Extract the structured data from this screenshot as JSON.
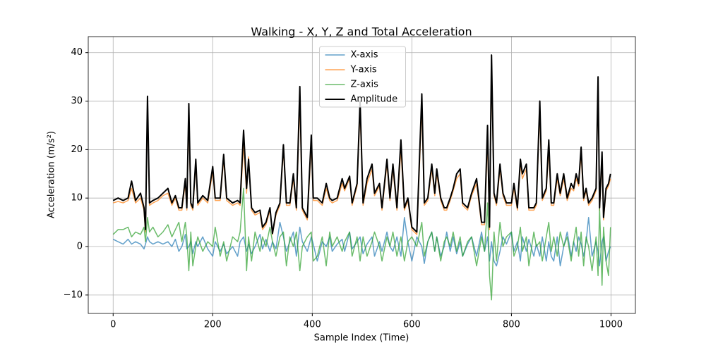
{
  "chart_data": {
    "type": "line",
    "title": "Walking - X, Y, Z and Total Acceleration",
    "x_label": "Sample Index (Time)",
    "y_label": "Acceleration (m/s²)",
    "x": [
      0,
      10,
      20,
      30,
      37,
      45,
      55,
      62,
      65,
      69,
      73,
      80,
      90,
      100,
      110,
      118,
      125,
      132,
      138,
      145,
      148,
      152,
      156,
      160,
      166,
      170,
      180,
      190,
      200,
      205,
      215,
      222,
      228,
      240,
      250,
      255,
      262,
      268,
      272,
      278,
      285,
      295,
      300,
      307,
      315,
      320,
      327,
      335,
      342,
      348,
      355,
      362,
      368,
      375,
      380,
      390,
      398,
      402,
      410,
      420,
      428,
      435,
      440,
      450,
      460,
      465,
      475,
      480,
      490,
      496,
      502,
      510,
      520,
      525,
      535,
      540,
      550,
      556,
      562,
      570,
      578,
      585,
      592,
      600,
      610,
      620,
      625,
      632,
      640,
      646,
      650,
      658,
      665,
      670,
      677,
      683,
      690,
      697,
      702,
      712,
      720,
      730,
      740,
      746,
      752,
      756,
      760,
      765,
      770,
      777,
      783,
      790,
      800,
      805,
      812,
      818,
      822,
      830,
      835,
      845,
      850,
      857,
      862,
      870,
      875,
      880,
      885,
      892,
      898,
      905,
      912,
      920,
      925,
      930,
      935,
      940,
      945,
      950,
      955,
      962,
      970,
      974,
      977,
      982,
      985,
      990,
      995,
      999
    ],
    "series": [
      {
        "name": "X-axis",
        "color": "#1f77b4b3",
        "linewidth": 1.5,
        "values": [
          1.5,
          1,
          0.5,
          1.5,
          0.5,
          1,
          0.5,
          -0.5,
          0.5,
          2,
          1,
          0.5,
          1,
          0.5,
          1,
          0,
          1.5,
          -1,
          0,
          2.5,
          -0.5,
          0,
          1,
          -1.5,
          1,
          0,
          2,
          -0.5,
          -2,
          1,
          -1,
          0.5,
          -1.5,
          0,
          -2,
          1,
          2,
          -1,
          0.5,
          -1.5,
          0,
          2.5,
          -0.5,
          1.5,
          -1,
          1,
          -0.5,
          5,
          2,
          -1,
          1,
          3,
          -2,
          4,
          1,
          -1,
          2,
          0.5,
          -3,
          1,
          0,
          2,
          -1,
          0.5,
          1.5,
          -1,
          3,
          -0.5,
          1,
          2,
          -1.5,
          0.5,
          2,
          -2,
          1,
          -1,
          3,
          0,
          -1,
          2,
          -2,
          6,
          1,
          -3,
          2,
          0,
          -3.5,
          1,
          3,
          -1,
          2,
          -2,
          0,
          3,
          -1,
          2,
          -1.5,
          1,
          -2,
          0.5,
          2,
          -2,
          3,
          -1,
          2,
          -3,
          1,
          -3,
          -4,
          -1,
          2,
          0.5,
          3,
          -1,
          1,
          -3,
          2,
          -1,
          1.5,
          -2,
          0.5,
          -2,
          2,
          -3,
          1,
          -2,
          -3,
          2,
          -4,
          0,
          3,
          -2,
          1,
          -1,
          2,
          0.5,
          -2,
          1,
          6,
          -2,
          1,
          -1,
          -4,
          1,
          2,
          -3,
          -1,
          0
        ]
      },
      {
        "name": "Y-axis",
        "color": "#ff7f0eb3",
        "linewidth": 1.5,
        "values": [
          9,
          9.3,
          9,
          9.5,
          12,
          9,
          10,
          7.5,
          3,
          30,
          8.5,
          9,
          9.5,
          10.5,
          11,
          8.5,
          10,
          7.5,
          7.5,
          13,
          7.5,
          27,
          8.5,
          7.5,
          17,
          8.5,
          10,
          9,
          15.5,
          9.5,
          9.5,
          18,
          9.5,
          8.5,
          9,
          8.5,
          21,
          11,
          18.5,
          7.5,
          6.5,
          7,
          3.5,
          4.5,
          7.5,
          2.5,
          6.5,
          8.5,
          20,
          8.5,
          8.5,
          14,
          7.5,
          30,
          7.5,
          5.5,
          21,
          9.5,
          9.5,
          8.5,
          12,
          9.5,
          9,
          9.5,
          13,
          11.5,
          14,
          8.5,
          12.5,
          28,
          8.5,
          13,
          16,
          10.5,
          12.5,
          7.5,
          17,
          9.5,
          16,
          7.5,
          20,
          7.5,
          9.5,
          3.5,
          2.5,
          29,
          8.5,
          9.5,
          16,
          10.5,
          15,
          9.5,
          7.5,
          7.5,
          9.5,
          11.5,
          14,
          15,
          8.5,
          7.5,
          10.5,
          13,
          4.5,
          4.5,
          22,
          3.5,
          37,
          10.5,
          8.5,
          16,
          10.5,
          8.5,
          8.5,
          12,
          7.5,
          17,
          14,
          16,
          7.5,
          7.5,
          8.5,
          28,
          9.5,
          11.5,
          20,
          8.5,
          8.5,
          14,
          10.5,
          14,
          9.5,
          12,
          11.5,
          14,
          12.5,
          19,
          9.5,
          11.5,
          8.5,
          9.5,
          11.5,
          33,
          7.5,
          18,
          5.5,
          11.5,
          12.5,
          14
        ]
      },
      {
        "name": "Z-axis",
        "color": "#2ca02cb3",
        "linewidth": 1.5,
        "values": [
          2.5,
          3.5,
          3.5,
          4,
          2,
          3,
          2.5,
          4,
          1,
          6,
          3,
          4,
          2,
          3,
          4.5,
          2,
          3.5,
          5,
          1,
          5,
          2,
          -5,
          3,
          -4,
          0,
          2,
          -1,
          1,
          0,
          4,
          -2,
          1,
          -3,
          2,
          1,
          3,
          12,
          -5,
          2,
          -3,
          3,
          -1,
          2,
          0,
          4,
          1,
          -2,
          2,
          3,
          -4,
          2,
          0,
          3,
          -5,
          0,
          2,
          3,
          -3,
          -2,
          2,
          -4,
          3,
          0,
          2,
          -1,
          1,
          3,
          -2,
          2,
          -3,
          2,
          -2,
          1,
          3,
          0,
          -3,
          2,
          0,
          3,
          -2,
          2,
          -3,
          1,
          2,
          0,
          5,
          -2,
          1,
          3,
          -1,
          2,
          -3,
          1,
          2,
          0,
          3,
          -1,
          2,
          -2,
          1,
          2,
          -4,
          2,
          -1,
          9,
          -6,
          -11,
          3,
          -3,
          5,
          0,
          2,
          3,
          -2,
          0,
          4,
          -1,
          2,
          -4,
          3,
          0,
          1,
          -3,
          2,
          5,
          -1,
          2,
          -2,
          3,
          0,
          2,
          -3,
          1,
          4,
          -2,
          3,
          -4,
          2,
          0,
          -5,
          2,
          -6,
          8,
          -8,
          4,
          -3,
          -6,
          4
        ]
      },
      {
        "name": "Amplitude",
        "color": "#000000",
        "linewidth": 2,
        "values": [
          9.5,
          10,
          9.5,
          10,
          13.5,
          9.5,
          11,
          8,
          3.5,
          31,
          9,
          9.5,
          10,
          11,
          12,
          9,
          10.5,
          8,
          8,
          14,
          8,
          29.5,
          9,
          8,
          18,
          9,
          10.5,
          9.5,
          16.5,
          10,
          10,
          19,
          10,
          9,
          9.5,
          9,
          24,
          12,
          18,
          8,
          7,
          7.5,
          4,
          5,
          8,
          2.7,
          7,
          9,
          21,
          9,
          9,
          15,
          8,
          33,
          8,
          6,
          23,
          10,
          10,
          9,
          13,
          10,
          9.5,
          10,
          14,
          12,
          14.5,
          9,
          13,
          30,
          9,
          14,
          17,
          11,
          13,
          8,
          18,
          10,
          17,
          8,
          22,
          8,
          10,
          4,
          3,
          31.5,
          9,
          10,
          17,
          11,
          16,
          10,
          8,
          8,
          10,
          12,
          15,
          16,
          9,
          8,
          11,
          14,
          5,
          5,
          25,
          4,
          39.5,
          11,
          9,
          17,
          11,
          9,
          9,
          13,
          8,
          18,
          15,
          17,
          8,
          8,
          9,
          30,
          10,
          12,
          22,
          9,
          9,
          15,
          11,
          15,
          10,
          13,
          12,
          15,
          13,
          20.5,
          10,
          12,
          9,
          10,
          12,
          35,
          8,
          19.5,
          6,
          12,
          13,
          15
        ]
      }
    ],
    "xlim": [
      -50,
      1049
    ],
    "ylim": [
      -13.8,
      43.3
    ],
    "xticks": [
      0,
      200,
      400,
      600,
      800,
      1000
    ],
    "yticks": [
      {
        "value": -10,
        "label": "−10"
      },
      0,
      10,
      20,
      30,
      40
    ],
    "grid": true,
    "legend": "upper center"
  }
}
